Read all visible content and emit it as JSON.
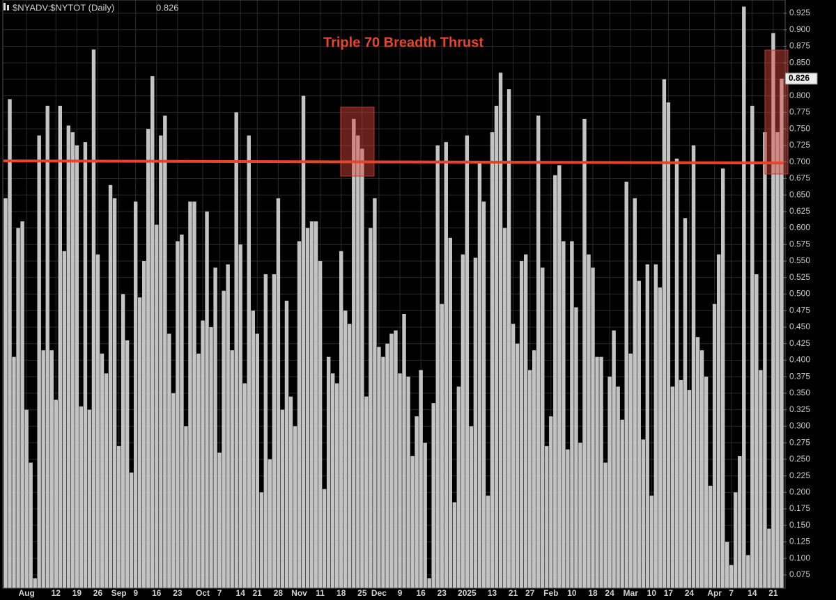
{
  "chart_data": {
    "type": "bar",
    "header": "$NYADV:$NYTOT (Daily)",
    "title": "Triple 70 Breadth Thrust",
    "color": "#c4c4c4",
    "reference_line": {
      "value": 0.7,
      "color": "#e8432c"
    },
    "grid": true,
    "ylim": [
      0.055,
      0.945
    ],
    "yticks": [
      0.925,
      {
        "value": 0.9,
        "label": "0.900"
      },
      0.875,
      {
        "value": 0.85,
        "label": "0.850"
      },
      0.825,
      {
        "value": 0.8,
        "label": "0.800"
      },
      0.775,
      {
        "value": 0.75,
        "label": "0.750"
      },
      0.725,
      {
        "value": 0.7,
        "label": "0.700"
      },
      0.675,
      {
        "value": 0.65,
        "label": "0.650"
      },
      0.625,
      {
        "value": 0.6,
        "label": "0.600"
      },
      0.575,
      {
        "value": 0.55,
        "label": "0.550"
      },
      0.525,
      {
        "value": 0.5,
        "label": "0.500"
      },
      0.475,
      {
        "value": 0.45,
        "label": "0.450"
      },
      0.425,
      {
        "value": 0.4,
        "label": "0.400"
      },
      0.375,
      {
        "value": 0.35,
        "label": "0.350"
      },
      0.325,
      {
        "value": 0.3,
        "label": "0.300"
      },
      0.275,
      {
        "value": 0.25,
        "label": "0.250"
      },
      0.225,
      {
        "value": 0.2,
        "label": "0.200"
      },
      0.175,
      {
        "value": 0.15,
        "label": "0.150"
      },
      0.125,
      {
        "value": 0.1,
        "label": "0.100"
      },
      0.075
    ],
    "categories": [
      null,
      null,
      null,
      null,
      null,
      "Aug",
      null,
      null,
      null,
      null,
      null,
      null,
      "12",
      null,
      null,
      null,
      null,
      "19",
      null,
      null,
      null,
      null,
      "26",
      null,
      null,
      null,
      null,
      "Sep",
      null,
      null,
      null,
      "9",
      null,
      null,
      null,
      null,
      "16",
      null,
      null,
      null,
      null,
      "23",
      null,
      null,
      null,
      null,
      null,
      "Oct",
      null,
      null,
      null,
      "7",
      null,
      null,
      null,
      null,
      "14",
      null,
      null,
      null,
      "21",
      null,
      null,
      null,
      null,
      "28",
      null,
      null,
      null,
      null,
      "Nov",
      null,
      null,
      null,
      null,
      "11",
      null,
      null,
      null,
      null,
      "18",
      null,
      null,
      null,
      null,
      "25",
      null,
      null,
      null,
      "Dec",
      null,
      null,
      null,
      null,
      "9",
      null,
      null,
      null,
      null,
      "16",
      null,
      null,
      null,
      null,
      "23",
      null,
      null,
      null,
      null,
      null,
      "2025",
      null,
      null,
      null,
      null,
      null,
      "13",
      null,
      null,
      null,
      null,
      "21",
      null,
      null,
      null,
      "27",
      null,
      null,
      null,
      null,
      "Feb",
      null,
      null,
      null,
      null,
      "10",
      null,
      null,
      null,
      null,
      "18",
      null,
      null,
      null,
      "24",
      null,
      null,
      null,
      null,
      "Mar",
      null,
      null,
      null,
      null,
      "10",
      null,
      null,
      null,
      "17",
      null,
      null,
      null,
      null,
      "24",
      null,
      null,
      null,
      null,
      null,
      "Apr",
      null,
      null,
      null,
      "7",
      null,
      null,
      null,
      null,
      "14",
      null,
      null,
      null,
      null,
      "21",
      null,
      null
    ],
    "values": [
      0.645,
      0.795,
      0.405,
      0.6,
      0.61,
      0.325,
      0.245,
      0.07,
      0.74,
      0.415,
      0.785,
      0.415,
      0.34,
      0.785,
      0.565,
      0.755,
      0.745,
      0.725,
      0.33,
      0.73,
      0.325,
      0.87,
      0.56,
      0.41,
      0.38,
      0.665,
      0.645,
      0.27,
      0.5,
      0.43,
      0.23,
      0.64,
      0.495,
      0.55,
      0.75,
      0.83,
      0.605,
      0.74,
      0.77,
      0.44,
      0.35,
      0.58,
      0.59,
      0.3,
      0.64,
      0.64,
      0.41,
      0.46,
      0.625,
      0.45,
      0.54,
      0.26,
      0.505,
      0.545,
      0.415,
      0.775,
      0.575,
      0.365,
      0.74,
      0.475,
      0.44,
      0.2,
      0.53,
      0.25,
      0.53,
      0.645,
      0.325,
      0.49,
      0.345,
      0.3,
      0.58,
      0.8,
      0.6,
      0.61,
      0.61,
      0.55,
      0.205,
      0.405,
      0.38,
      0.365,
      0.565,
      0.475,
      0.455,
      0.765,
      0.74,
      0.72,
      0.345,
      0.6,
      0.645,
      0.42,
      0.405,
      0.425,
      0.44,
      0.445,
      0.38,
      0.47,
      0.375,
      0.255,
      0.315,
      0.385,
      0.275,
      0.07,
      0.335,
      0.725,
      0.485,
      0.73,
      0.585,
      0.185,
      0.36,
      0.56,
      0.74,
      0.3,
      0.555,
      0.7,
      0.64,
      0.195,
      0.745,
      0.785,
      0.835,
      0.6,
      0.81,
      0.455,
      0.425,
      0.55,
      0.56,
      0.385,
      0.415,
      0.77,
      0.54,
      0.27,
      0.315,
      0.68,
      0.695,
      0.58,
      0.265,
      0.58,
      0.48,
      0.275,
      0.765,
      0.56,
      0.54,
      0.405,
      0.405,
      0.245,
      0.375,
      0.445,
      0.36,
      0.31,
      0.67,
      0.41,
      0.645,
      0.52,
      0.28,
      0.545,
      0.195,
      0.545,
      0.51,
      0.825,
      0.79,
      0.36,
      0.705,
      0.37,
      0.615,
      0.355,
      0.725,
      0.435,
      0.415,
      0.375,
      0.21,
      0.485,
      0.56,
      0.69,
      0.125,
      0.09,
      0.2,
      0.255,
      0.935,
      0.105,
      0.785,
      0.53,
      0.385,
      0.745,
      0.145,
      0.895,
      0.745,
      0.826
    ]
  }
}
